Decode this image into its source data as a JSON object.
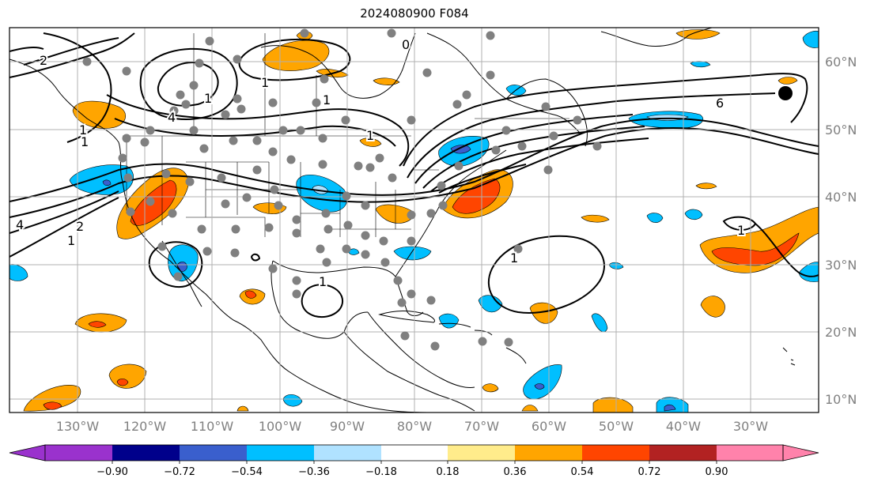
{
  "title": "2024080900 F084",
  "map": {
    "lon_labels": [
      "130°W",
      "120°W",
      "110°W",
      "100°W",
      "90°W",
      "80°W",
      "70°W",
      "60°W",
      "50°W",
      "40°W",
      "30°W"
    ],
    "lat_labels": [
      "60°N",
      "50°N",
      "40°N",
      "30°N",
      "20°N",
      "10°N"
    ],
    "contour_labels": [
      "1",
      "1",
      "1",
      "1",
      "2",
      "4",
      "4",
      "6",
      "1",
      "1",
      "1",
      "1",
      "1",
      "1",
      "0",
      "2"
    ],
    "colors": {
      "land": "#000000",
      "contour": "#000000",
      "grid": "#b0b0b0",
      "station": "#808080",
      "marker": "#000000"
    }
  },
  "colorbar": {
    "bounds": [
      "−0.90",
      "−0.72",
      "−0.54",
      "−0.36",
      "−0.18",
      "0.18",
      "0.36",
      "0.54",
      "0.72",
      "0.90"
    ],
    "colors": [
      "#9a32cd",
      "#00008b",
      "#3a5fcd",
      "#00bfff",
      "#b0e2ff",
      "#ffffff",
      "#ffec8b",
      "#ffa500",
      "#ff4500",
      "#b22222",
      "#ff82ab"
    ]
  }
}
